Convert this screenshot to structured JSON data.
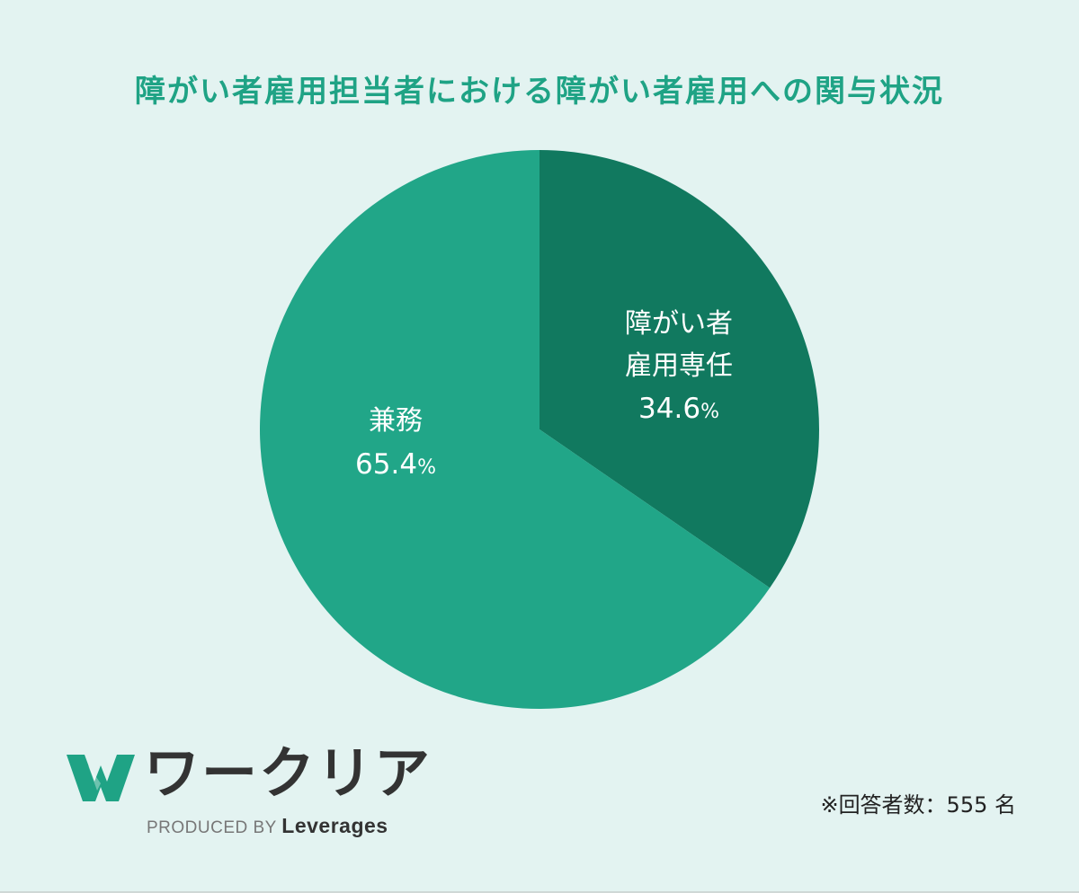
{
  "chart_data": {
    "type": "pie",
    "title": "障がい者雇用担当者における障がい者雇用への関与状況",
    "slices": [
      {
        "label_line1": "障がい者",
        "label_line2": "雇用専任",
        "value": 34.6,
        "value_text": "34.6",
        "unit": "%",
        "color": "#11795f"
      },
      {
        "label_line1": "兼務",
        "label_line2": "",
        "value": 65.4,
        "value_text": "65.4",
        "unit": "%",
        "color": "#21a688"
      }
    ],
    "start_angle_deg": 0,
    "direction": "clockwise"
  },
  "logo": {
    "text": "ワークリア",
    "produced_by": "PRODUCED BY",
    "brand": "Leverages",
    "mark_color": "#1fa385"
  },
  "note": "※回答者数：555 名",
  "colors": {
    "background": "#e3f3f1",
    "title": "#1fa385"
  }
}
